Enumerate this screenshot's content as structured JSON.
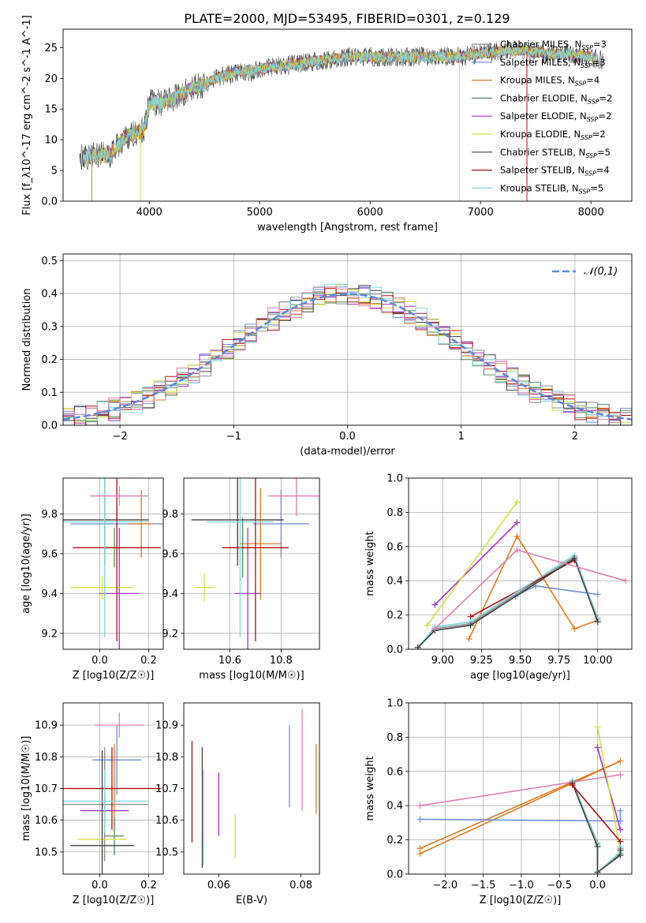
{
  "figure_title": "PLATE=2000, MJD=53495, FIBERID=0301, z=0.129",
  "colors": {
    "chabrier_miles": "#8c8c8c",
    "salpeter_miles": "#6d8fd8",
    "kroupa_miles": "#e07b22",
    "chabrier_elodie": "#4f8a5f",
    "salpeter_elodie": "#a030c0",
    "kroupa_elodie": "#d2e040",
    "chabrier_stelib": "#404040",
    "salpeter_stelib": "#b01010",
    "kroupa_stelib": "#7fd6dc",
    "pink": "#e080b0",
    "gaussian": "#5b8bd9"
  },
  "chart_data": [
    {
      "id": "spectrum",
      "type": "line",
      "xlabel": "wavelength [Angstrom, rest frame]",
      "ylabel": "Flux [f_λ10^-17 erg cm^-2 s^-1 A^-1]",
      "xlim": [
        3220,
        8370
      ],
      "ylim": [
        0,
        28
      ],
      "xticks": [
        4000,
        5000,
        6000,
        7000,
        8000
      ],
      "yticks": [
        0,
        5,
        10,
        15,
        20,
        25
      ],
      "grid": false,
      "legend_position": "top-right",
      "legend": [
        {
          "label": "Chabrier MILES, N_SSP=3",
          "color": "#8c8c8c"
        },
        {
          "label": "Salpeter MILES, N_SSP=3",
          "color": "#6d8fd8"
        },
        {
          "label": "Kroupa MILES, N_SSP=4",
          "color": "#e07b22"
        },
        {
          "label": "Chabrier ELODIE, N_SSP=2",
          "color": "#4f8a5f"
        },
        {
          "label": "Salpeter ELODIE, N_SSP=2",
          "color": "#a030c0"
        },
        {
          "label": "Kroupa ELODIE, N_SSP=2",
          "color": "#d2e040"
        },
        {
          "label": "Chabrier STELIB, N_SSP=5",
          "color": "#404040"
        },
        {
          "label": "Salpeter STELIB, N_SSP=4",
          "color": "#b01010"
        },
        {
          "label": "Kroupa STELIB, N_SSP=5",
          "color": "#7fd6dc"
        }
      ],
      "continuum": {
        "x": [
          3370,
          3500,
          3650,
          3750,
          3850,
          3950,
          4000,
          4100,
          4200,
          4300,
          4400,
          4500,
          4600,
          4700,
          4800,
          4900,
          5000,
          5200,
          5400,
          5600,
          5800,
          6000,
          6200,
          6400,
          6600,
          6800,
          7000,
          7200,
          7400,
          7600,
          7800,
          8000,
          8100
        ],
        "y": [
          7.0,
          7.5,
          7.5,
          10.0,
          11.0,
          11.5,
          16.0,
          16.0,
          16.5,
          17.5,
          18.5,
          19.0,
          20.0,
          20.5,
          21.0,
          21.0,
          21.5,
          22.0,
          22.5,
          23.0,
          23.5,
          23.5,
          23.5,
          23.5,
          23.5,
          23.5,
          24.0,
          24.5,
          24.5,
          24.0,
          24.0,
          23.5,
          23.0
        ]
      },
      "drops": [
        {
          "x": 3480,
          "model": "Kroupa MILES"
        },
        {
          "x": 3920,
          "model": "Kroupa ELODIE"
        },
        {
          "x": 6810,
          "model": "Kroupa ELODIE"
        },
        {
          "x": 7420,
          "model": "Salpeter STELIB"
        }
      ]
    },
    {
      "id": "residuals",
      "type": "step",
      "xlabel": "(data-model)/error",
      "ylabel": "Normed distribution",
      "xlim": [
        -2.5,
        2.5
      ],
      "ylim": [
        0,
        0.52
      ],
      "xticks": [
        -2,
        -1,
        0,
        1,
        2
      ],
      "yticks": [
        0.0,
        0.1,
        0.2,
        0.3,
        0.4,
        0.5
      ],
      "grid": true,
      "legend_position": "top-right",
      "legend": [
        {
          "label": "𝒩(0,1)",
          "color": "#5b8bd9",
          "dashed": true
        }
      ],
      "bin_width": 0.1,
      "gaussian": {
        "mean": 0,
        "sigma": 1
      }
    },
    {
      "id": "age-vs-Z",
      "type": "scatter",
      "xlabel": "Z [log10(Z/Z☉)]",
      "ylabel": "age [log10(age/yr)]",
      "xlim": [
        -0.15,
        0.26
      ],
      "ylim": [
        9.12,
        9.98
      ],
      "xticks": [
        0.0,
        0.2
      ],
      "yticks": [
        9.2,
        9.4,
        9.6,
        9.8
      ],
      "grid": true,
      "points": [
        {
          "x": 0.02,
          "y": 9.77,
          "xerr": 0.18,
          "yerr": 0.2,
          "color": "#8c8c8c"
        },
        {
          "x": 0.07,
          "y": 9.75,
          "xerr": 0.19,
          "yerr": 0.1,
          "color": "#6d8fd8"
        },
        {
          "x": 0.17,
          "y": 9.75,
          "xerr": 0.05,
          "yerr": 0.17,
          "color": "#e07b22"
        },
        {
          "x": 0.06,
          "y": 9.63,
          "xerr": 0.04,
          "yerr": 0.1,
          "color": "#4f8a5f"
        },
        {
          "x": 0.08,
          "y": 9.4,
          "xerr": 0.08,
          "yerr": 0.33,
          "color": "#a030c0"
        },
        {
          "x": 0.01,
          "y": 9.43,
          "xerr": 0.13,
          "yerr": 0.06,
          "color": "#d2e040"
        },
        {
          "x": 0.02,
          "y": 9.77,
          "xerr": 0.18,
          "yerr": 0.23,
          "color": "#404040"
        },
        {
          "x": 0.07,
          "y": 9.63,
          "xerr": 0.18,
          "yerr": 0.47,
          "color": "#b01010"
        },
        {
          "x": 0.02,
          "y": 9.76,
          "xerr": 0.18,
          "yerr": 0.58,
          "color": "#7fd6dc"
        },
        {
          "x": 0.08,
          "y": 9.89,
          "xerr": 0.12,
          "yerr": 0.05,
          "color": "#e080b0"
        }
      ]
    },
    {
      "id": "age-vs-mass",
      "type": "scatter",
      "xlabel": "mass [log10(M/M☉)]",
      "ylabel": "",
      "xlim": [
        10.42,
        10.95
      ],
      "ylim": [
        9.12,
        9.98
      ],
      "xticks": [
        10.6,
        10.8
      ],
      "yticks": [
        9.2,
        9.4,
        9.6,
        9.8
      ],
      "grid": true,
      "points": [
        {
          "x": 10.63,
          "y": 9.77,
          "xerr": 0.18,
          "yerr": 0.2,
          "color": "#8c8c8c"
        },
        {
          "x": 10.8,
          "y": 9.75,
          "xerr": 0.11,
          "yerr": 0.17,
          "color": "#6d8fd8"
        },
        {
          "x": 10.72,
          "y": 9.65,
          "xerr": 0.08,
          "yerr": 0.28,
          "color": "#e07b22"
        },
        {
          "x": 10.65,
          "y": 9.63,
          "xerr": 0.05,
          "yerr": 0.15,
          "color": "#4f8a5f"
        },
        {
          "x": 10.67,
          "y": 9.4,
          "xerr": 0.05,
          "yerr": 0.33,
          "color": "#a030c0"
        },
        {
          "x": 10.5,
          "y": 9.43,
          "xerr": 0.04,
          "yerr": 0.07,
          "color": "#d2e040"
        },
        {
          "x": 10.63,
          "y": 9.77,
          "xerr": 0.18,
          "yerr": 0.23,
          "color": "#404040"
        },
        {
          "x": 10.7,
          "y": 9.63,
          "xerr": 0.13,
          "yerr": 0.47,
          "color": "#b01010"
        },
        {
          "x": 10.64,
          "y": 9.76,
          "xerr": 0.13,
          "yerr": 0.58,
          "color": "#7fd6dc"
        },
        {
          "x": 10.86,
          "y": 9.89,
          "xerr": 0.11,
          "yerr": 0.1,
          "color": "#e080b0"
        }
      ]
    },
    {
      "id": "weight-vs-age",
      "type": "line",
      "xlabel": "age [log10(age/yr)]",
      "ylabel": "mass weight",
      "xlim": [
        8.78,
        10.22
      ],
      "ylim": [
        0.0,
        1.0
      ],
      "xticks": [
        9.0,
        9.25,
        9.5,
        9.75,
        10.0
      ],
      "yticks": [
        0.0,
        0.2,
        0.4,
        0.6,
        0.8,
        1.0
      ],
      "grid": true,
      "series": [
        {
          "color": "#8c8c8c",
          "x": [
            8.84,
            8.95,
            9.18,
            9.85,
            10.0
          ],
          "y": [
            0.01,
            0.12,
            0.15,
            0.54,
            0.18
          ]
        },
        {
          "color": "#6d8fd8",
          "x": [
            9.47,
            9.6,
            10.0
          ],
          "y": [
            0.31,
            0.37,
            0.32
          ]
        },
        {
          "color": "#e07b22",
          "x": [
            9.17,
            9.48,
            9.85,
            10.0
          ],
          "y": [
            0.06,
            0.66,
            0.12,
            0.17
          ]
        },
        {
          "color": "#a030c0",
          "x": [
            8.95,
            9.48
          ],
          "y": [
            0.26,
            0.74
          ]
        },
        {
          "color": "#d2e040",
          "x": [
            8.9,
            9.48
          ],
          "y": [
            0.14,
            0.86
          ]
        },
        {
          "color": "#b01010",
          "x": [
            9.18,
            9.85
          ],
          "y": [
            0.19,
            0.52
          ]
        },
        {
          "color": "#7fd6dc",
          "x": [
            8.84,
            8.95,
            9.18,
            9.85,
            10.0
          ],
          "y": [
            0.01,
            0.13,
            0.16,
            0.55,
            0.17
          ]
        },
        {
          "color": "#404040",
          "x": [
            8.84,
            8.95,
            9.18,
            9.85,
            10.0
          ],
          "y": [
            0.01,
            0.11,
            0.14,
            0.53,
            0.16
          ]
        },
        {
          "color": "#e080b0",
          "x": [
            8.95,
            9.48,
            10.18
          ],
          "y": [
            0.12,
            0.58,
            0.4
          ]
        }
      ]
    },
    {
      "id": "mass-vs-Z",
      "type": "scatter",
      "xlabel": "Z [log10(Z/Z☉)]",
      "ylabel": "mass [log10(M/M☉)]",
      "xlim": [
        -0.15,
        0.26
      ],
      "ylim": [
        10.43,
        10.97
      ],
      "xticks": [
        0.0,
        0.2
      ],
      "yticks": [
        10.5,
        10.6,
        10.7,
        10.8,
        10.9
      ],
      "grid": true,
      "points": [
        {
          "x": 0.02,
          "y": 10.65,
          "xerr": 0.18,
          "yerr": 0.18,
          "color": "#8c8c8c"
        },
        {
          "x": 0.07,
          "y": 10.79,
          "xerr": 0.1,
          "yerr": 0.11,
          "color": "#6d8fd8"
        },
        {
          "x": 0.06,
          "y": 10.7,
          "xerr": 0.19,
          "yerr": 0.14,
          "color": "#e07b22"
        },
        {
          "x": 0.06,
          "y": 10.55,
          "xerr": 0.04,
          "yerr": 0.06,
          "color": "#4f8a5f"
        },
        {
          "x": 0.02,
          "y": 10.63,
          "xerr": 0.1,
          "yerr": 0.05,
          "color": "#a030c0"
        },
        {
          "x": 0.01,
          "y": 10.54,
          "xerr": 0.1,
          "yerr": 0.07,
          "color": "#d2e040"
        },
        {
          "x": 0.01,
          "y": 10.52,
          "xerr": 0.13,
          "yerr": 0.3,
          "color": "#404040"
        },
        {
          "x": 0.05,
          "y": 10.7,
          "xerr": 0.2,
          "yerr": 0.13,
          "color": "#b01010"
        },
        {
          "x": 0.02,
          "y": 10.66,
          "xerr": 0.18,
          "yerr": 0.1,
          "color": "#7fd6dc"
        },
        {
          "x": 0.08,
          "y": 10.9,
          "xerr": 0.1,
          "yerr": 0.04,
          "color": "#e080b0"
        }
      ]
    },
    {
      "id": "mass-vs-ebv",
      "type": "scatter",
      "xlabel": "E(B-V)",
      "ylabel": "",
      "xlim": [
        0.0515,
        0.0845
      ],
      "ylim": [
        10.43,
        10.97
      ],
      "xticks": [
        0.06,
        0.08
      ],
      "yticks": [
        10.5,
        10.6,
        10.7,
        10.8,
        10.9
      ],
      "grid": false,
      "points": [
        {
          "x": 0.0535,
          "y": 10.69,
          "yerr": 0.16,
          "color": "#b01010"
        },
        {
          "x": 0.056,
          "y": 10.64,
          "yerr": 0.19,
          "color": "#404040"
        },
        {
          "x": 0.0563,
          "y": 10.61,
          "yerr": 0.15,
          "color": "#7fd6dc"
        },
        {
          "x": 0.06,
          "y": 10.65,
          "yerr": 0.1,
          "color": "#a030c0"
        },
        {
          "x": 0.064,
          "y": 10.55,
          "yerr": 0.07,
          "color": "#d2e040"
        },
        {
          "x": 0.0772,
          "y": 10.77,
          "yerr": 0.13,
          "color": "#6d8fd8"
        },
        {
          "x": 0.0803,
          "y": 10.79,
          "yerr": 0.16,
          "color": "#e080b0"
        },
        {
          "x": 0.0837,
          "y": 10.73,
          "yerr": 0.11,
          "color": "#e07b22"
        }
      ]
    },
    {
      "id": "weight-vs-Z",
      "type": "line",
      "xlabel": "Z [log10(Z/Z☉)]",
      "ylabel": "mass weight",
      "xlim": [
        -2.48,
        0.45
      ],
      "ylim": [
        0.0,
        1.0
      ],
      "xticks": [
        -2.0,
        -1.5,
        -1.0,
        -0.5,
        0.0
      ],
      "yticks": [
        0.0,
        0.2,
        0.4,
        0.6,
        0.8,
        1.0
      ],
      "grid": true,
      "series": [
        {
          "color": "#e07b22",
          "x": [
            -2.33,
            0.3,
            -2.33
          ],
          "y": [
            0.12,
            0.66,
            0.15
          ]
        },
        {
          "color": "#6d8fd8",
          "x": [
            -2.33,
            0.3,
            0.3
          ],
          "y": [
            0.32,
            0.31,
            0.37
          ]
        },
        {
          "color": "#e080b0",
          "x": [
            -2.33,
            0.3
          ],
          "y": [
            0.4,
            0.58
          ]
        },
        {
          "color": "#a030c0",
          "x": [
            0.0,
            0.3
          ],
          "y": [
            0.74,
            0.26
          ]
        },
        {
          "color": "#d2e040",
          "x": [
            0.0,
            0.3
          ],
          "y": [
            0.86,
            0.14
          ]
        },
        {
          "color": "#8c8c8c",
          "x": [
            -0.33,
            0.0,
            0.0,
            0.3,
            0.3
          ],
          "y": [
            0.54,
            0.18,
            0.01,
            0.12,
            0.15
          ]
        },
        {
          "color": "#7fd6dc",
          "x": [
            -0.33,
            0.0,
            0.0,
            0.3,
            0.3
          ],
          "y": [
            0.55,
            0.17,
            0.01,
            0.13,
            0.16
          ]
        },
        {
          "color": "#404040",
          "x": [
            -0.33,
            0.0,
            0.0,
            0.3,
            0.3
          ],
          "y": [
            0.53,
            0.16,
            0.01,
            0.11,
            0.14
          ]
        },
        {
          "color": "#b01010",
          "x": [
            -0.33,
            0.3
          ],
          "y": [
            0.52,
            0.19
          ]
        }
      ]
    }
  ]
}
